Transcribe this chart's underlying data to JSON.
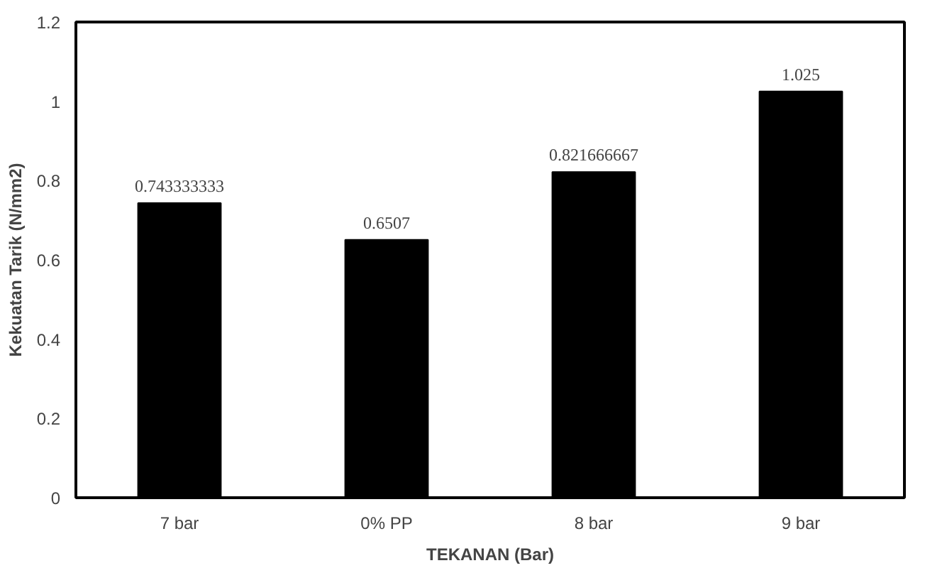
{
  "chart_data": {
    "type": "bar",
    "xlabel": "TEKANAN (Bar)",
    "ylabel": "Kekuatan Tarik (N/mm2)",
    "categories": [
      "7 bar",
      "0% PP",
      "8 bar",
      "9 bar"
    ],
    "values": [
      0.743333333,
      0.6507,
      0.821666667,
      1.025
    ],
    "color": "#000000",
    "ylim": [
      0,
      1.2
    ],
    "yticks": [
      0,
      0.2,
      0.4,
      0.6,
      0.8,
      1,
      1.2
    ],
    "data_labels": true,
    "grid": false
  }
}
